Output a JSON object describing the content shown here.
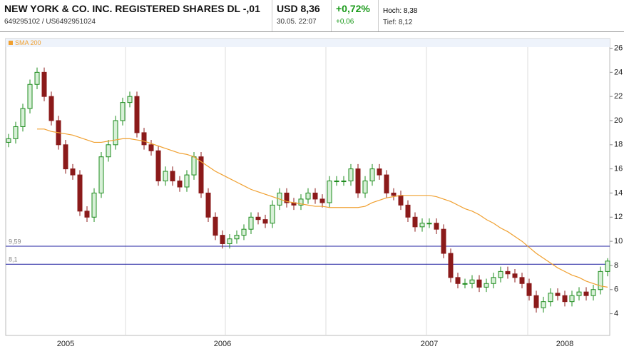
{
  "header": {
    "title": "NEW YORK & CO. INC. REGISTERED SHARES DL -,01",
    "ids": "649295102  /  US6492951024",
    "price": "USD 8,36",
    "time": "30.05. 22:07",
    "change_pct": "+0,72%",
    "change_abs": "+0,06",
    "high": "Hoch: 8,38",
    "low": "Tief: 8,12"
  },
  "chart_data": {
    "type": "candlestick",
    "categories": [
      null,
      null,
      null,
      null,
      null,
      null,
      null,
      null,
      "2005",
      null,
      null,
      null,
      null,
      null,
      null,
      null,
      null,
      null,
      null,
      null,
      null,
      null,
      null,
      null,
      null,
      null,
      null,
      null,
      null,
      null,
      "2006",
      null,
      null,
      null,
      null,
      null,
      null,
      null,
      null,
      null,
      null,
      null,
      null,
      null,
      null,
      null,
      null,
      null,
      null,
      null,
      null,
      null,
      null,
      null,
      null,
      null,
      null,
      null,
      null,
      "2007",
      null,
      null,
      null,
      null,
      null,
      null,
      null,
      null,
      null,
      null,
      null,
      null,
      null,
      null,
      null,
      null,
      null,
      null,
      "2008",
      null,
      null,
      null,
      null,
      null,
      null
    ],
    "open": [
      18.2,
      18.5,
      19.5,
      21,
      23,
      24,
      22,
      20,
      18,
      16,
      15.5,
      12.5,
      12,
      14,
      17,
      18,
      20,
      21.5,
      22,
      19,
      18,
      17.5,
      15,
      15.8,
      15,
      14.5,
      15.5,
      17,
      14,
      12,
      10.5,
      9.8,
      10.2,
      10.5,
      11,
      12,
      11.8,
      11.5,
      13,
      14,
      13.2,
      13,
      13.5,
      14,
      13.5,
      13.2,
      15,
      15,
      15,
      16,
      14,
      15,
      16,
      15.5,
      14,
      13.8,
      13,
      12,
      11.2,
      11.5,
      11.5,
      11,
      9,
      7,
      6.5,
      6.5,
      6.8,
      6.2,
      6.5,
      7,
      7.5,
      7.3,
      7,
      6.5,
      5.5,
      4.5,
      5,
      5.7,
      5.5,
      5,
      5.5,
      5.8,
      5.5,
      6,
      7.5
    ],
    "high": [
      18.9,
      19.9,
      21.4,
      23.4,
      24.4,
      24.4,
      22.4,
      20.4,
      18.4,
      16.4,
      15.9,
      12.9,
      14.4,
      17.4,
      18.4,
      20.4,
      21.9,
      22.4,
      22.4,
      19.4,
      18.4,
      17.9,
      16.2,
      16.2,
      15.4,
      15.9,
      17.4,
      17.4,
      14.4,
      12.4,
      10.9,
      10.6,
      10.9,
      11.4,
      12.4,
      12.4,
      12.2,
      13.4,
      14.4,
      14.4,
      13.6,
      13.9,
      14.4,
      14.4,
      13.9,
      15.4,
      15.4,
      15.4,
      16.4,
      16.4,
      15.4,
      16.4,
      16.4,
      15.9,
      14.4,
      14.2,
      13.4,
      12.4,
      11.9,
      11.9,
      11.9,
      11.4,
      9.4,
      7.4,
      6.9,
      7.2,
      7.2,
      6.9,
      7.4,
      7.9,
      7.9,
      7.7,
      7.4,
      6.9,
      5.9,
      5.4,
      6.1,
      6.1,
      5.9,
      5.9,
      6.2,
      6.2,
      6.4,
      7.9,
      8.6
    ],
    "low": [
      17.8,
      18.1,
      19.1,
      20.6,
      22.6,
      21.6,
      19.6,
      17.6,
      15.6,
      15.1,
      12.1,
      11.6,
      11.6,
      13.6,
      16.6,
      17.6,
      19.6,
      21.1,
      18.6,
      17.6,
      17.1,
      14.6,
      14.6,
      14.6,
      14.1,
      14.1,
      15.1,
      13.6,
      11.6,
      10.1,
      9.4,
      9.4,
      9.8,
      10.1,
      10.6,
      11.4,
      11.1,
      11.1,
      12.6,
      12.8,
      12.6,
      12.6,
      13.1,
      13.1,
      12.8,
      12.8,
      14.6,
      14.6,
      14.6,
      13.6,
      13.6,
      14.6,
      15.1,
      13.6,
      13.4,
      12.6,
      11.6,
      10.8,
      10.8,
      11.1,
      10.6,
      8.6,
      6.6,
      6.1,
      6.1,
      6.1,
      5.8,
      5.8,
      6.1,
      6.6,
      6.9,
      6.6,
      6.1,
      5.1,
      4.1,
      4.1,
      4.6,
      5.1,
      4.6,
      4.6,
      5.1,
      5.1,
      5.1,
      5.6,
      7.1
    ],
    "close": [
      18.5,
      19.5,
      21,
      23,
      24,
      22,
      20,
      18,
      16,
      15.5,
      12.5,
      12,
      14,
      17,
      18,
      20,
      21.5,
      22,
      19,
      18,
      17.5,
      15,
      15.8,
      15,
      14.5,
      15.5,
      17,
      14,
      12,
      10.5,
      9.8,
      10.2,
      10.5,
      11,
      12,
      11.8,
      11.5,
      13,
      14,
      13.2,
      13,
      13.5,
      14,
      13.5,
      13.2,
      15,
      15,
      15,
      16,
      14,
      15,
      16,
      15.5,
      14,
      13.8,
      13,
      12,
      11.2,
      11.5,
      11.5,
      11,
      9,
      7,
      6.5,
      6.5,
      6.8,
      6.2,
      6.5,
      7,
      7.5,
      7.3,
      7,
      6.5,
      5.5,
      4.5,
      5,
      5.7,
      5.5,
      5,
      5.5,
      5.8,
      5.5,
      6,
      7.5,
      8.36
    ],
    "up_color": "#1e8c1e",
    "down_color": "#8b1a1a",
    "series": [
      {
        "name": "SMA 200",
        "color": "#f0a030",
        "values": [
          null,
          null,
          null,
          null,
          19.3,
          19.3,
          19.1,
          19,
          18.9,
          18.8,
          18.6,
          18.4,
          18.2,
          18.2,
          18.3,
          18.4,
          18.5,
          18.5,
          18.4,
          18.3,
          18.1,
          17.9,
          17.7,
          17.5,
          17.3,
          17.2,
          17,
          16.6,
          16.2,
          15.8,
          15.5,
          15.2,
          14.9,
          14.6,
          14.3,
          14.1,
          13.9,
          13.7,
          13.5,
          13.3,
          13.2,
          13.1,
          13,
          12.9,
          12.9,
          12.8,
          12.8,
          12.8,
          12.8,
          12.8,
          12.9,
          13.2,
          13.4,
          13.6,
          13.7,
          13.8,
          13.8,
          13.8,
          13.8,
          13.8,
          13.7,
          13.5,
          13.3,
          13,
          12.7,
          12.5,
          12.2,
          11.8,
          11.5,
          11.1,
          10.8,
          10.4,
          10,
          9.5,
          9,
          8.6,
          8.2,
          7.8,
          7.5,
          7.2,
          7,
          6.7,
          6.5,
          6.3,
          6.2
        ]
      }
    ],
    "hlines": [
      {
        "value": 9.59,
        "label": "9,59",
        "color": "#2020a0"
      },
      {
        "value": 8.1,
        "label": "8,1",
        "color": "#2020a0"
      }
    ],
    "ylim": [
      2.2,
      26.8
    ],
    "yticks": [
      4,
      6,
      8,
      10,
      12,
      14,
      16,
      18,
      20,
      22,
      24,
      26
    ]
  }
}
